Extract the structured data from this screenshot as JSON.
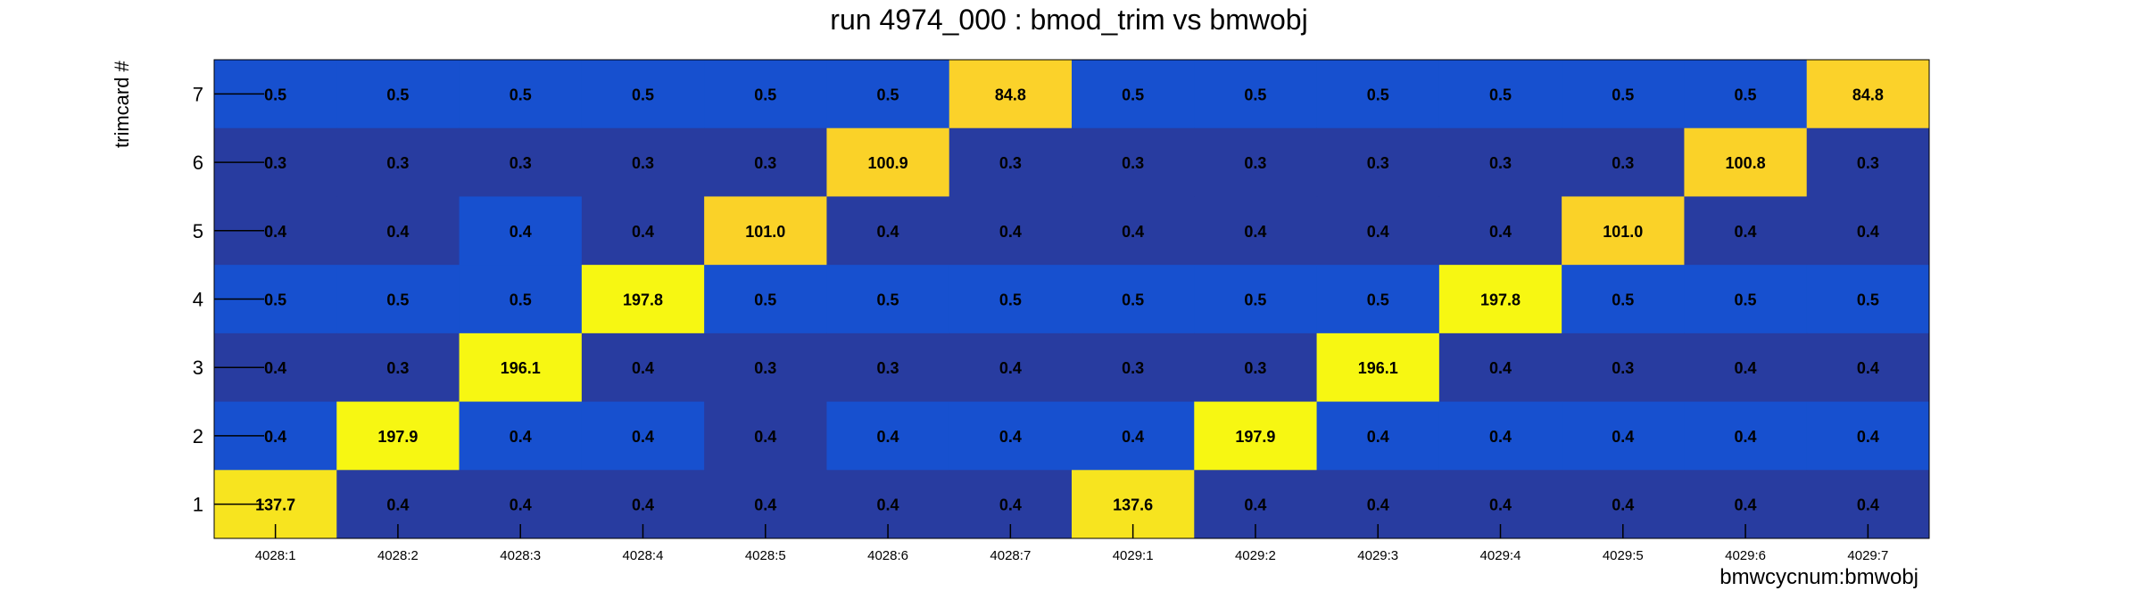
{
  "chart_data": {
    "type": "heatmap",
    "title": "run 4974_000 : bmod_trim vs bmwobj",
    "xlabel": "bmwcycnum:bmwobj",
    "ylabel": "trimcard #",
    "x_categories": [
      "4028:1",
      "4028:2",
      "4028:3",
      "4028:4",
      "4028:5",
      "4028:6",
      "4028:7",
      "4029:1",
      "4029:2",
      "4029:3",
      "4029:4",
      "4029:5",
      "4029:6",
      "4029:7"
    ],
    "y_categories": [
      "1",
      "2",
      "3",
      "4",
      "5",
      "6",
      "7"
    ],
    "rows": [
      {
        "y": "7",
        "values": [
          "0.5",
          "0.5",
          "0.5",
          "0.5",
          "0.5",
          "0.5",
          "84.8",
          "0.5",
          "0.5",
          "0.5",
          "0.5",
          "0.5",
          "0.5",
          "84.8"
        ]
      },
      {
        "y": "6",
        "values": [
          "0.3",
          "0.3",
          "0.3",
          "0.3",
          "0.3",
          "100.9",
          "0.3",
          "0.3",
          "0.3",
          "0.3",
          "0.3",
          "0.3",
          "100.8",
          "0.3"
        ]
      },
      {
        "y": "5",
        "values": [
          "0.4",
          "0.4",
          "0.4",
          "0.4",
          "101.0",
          "0.4",
          "0.4",
          "0.4",
          "0.4",
          "0.4",
          "0.4",
          "101.0",
          "0.4",
          "0.4"
        ]
      },
      {
        "y": "4",
        "values": [
          "0.5",
          "0.5",
          "0.5",
          "197.8",
          "0.5",
          "0.5",
          "0.5",
          "0.5",
          "0.5",
          "0.5",
          "197.8",
          "0.5",
          "0.5",
          "0.5"
        ]
      },
      {
        "y": "3",
        "values": [
          "0.4",
          "0.3",
          "196.1",
          "0.4",
          "0.3",
          "0.3",
          "0.4",
          "0.3",
          "0.3",
          "196.1",
          "0.4",
          "0.3",
          "0.4",
          "0.4"
        ]
      },
      {
        "y": "2",
        "values": [
          "0.4",
          "197.9",
          "0.4",
          "0.4",
          "0.4",
          "0.4",
          "0.4",
          "0.4",
          "197.9",
          "0.4",
          "0.4",
          "0.4",
          "0.4",
          "0.4"
        ]
      },
      {
        "y": "1",
        "values": [
          "137.7",
          "0.4",
          "0.4",
          "0.4",
          "0.4",
          "0.4",
          "0.4",
          "137.6",
          "0.4",
          "0.4",
          "0.4",
          "0.4",
          "0.4",
          "0.4"
        ]
      }
    ],
    "palette": {
      "low_dark": "#283ca0",
      "low_mid": "#1750cf",
      "high_84": "#fbd22a",
      "high_100": "#fad228",
      "high_137": "#f7e41f",
      "high_196": "#f7f712"
    }
  }
}
